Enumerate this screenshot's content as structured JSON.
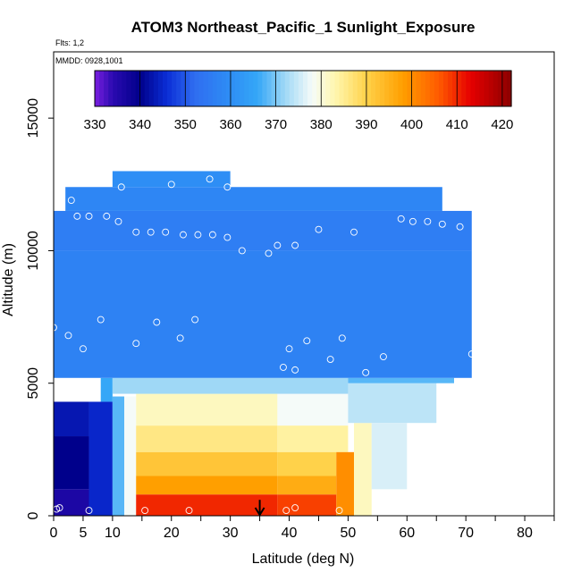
{
  "chart_data": {
    "type": "heatmap",
    "title": "ATOM3 Northeast_Pacific_1 Sunlight_Exposure",
    "flights_label": "Flts: 1,2",
    "mmdd_label": "MMDD: 0928,1001",
    "xlabel": "Latitude (deg N)",
    "ylabel": "Altitude (m)",
    "xlim": [
      0,
      85
    ],
    "ylim": [
      0,
      17500
    ],
    "x_ticks": [
      0,
      5,
      10,
      20,
      30,
      40,
      50,
      60,
      70,
      80
    ],
    "x_minor_ticks": [
      0,
      5,
      10,
      15,
      20,
      25,
      30,
      35,
      40,
      45,
      50,
      55,
      60,
      65,
      70,
      75,
      80,
      85
    ],
    "y_ticks": [
      0,
      5000,
      10000,
      15000
    ],
    "colorbar": {
      "min": 330,
      "max": 422,
      "ticks": [
        330,
        340,
        350,
        360,
        370,
        380,
        390,
        400,
        410,
        420
      ],
      "stops": [
        [
          330,
          "#7a1fe0"
        ],
        [
          334,
          "#2a0ab0"
        ],
        [
          340,
          "#00008b"
        ],
        [
          346,
          "#0b2ed6"
        ],
        [
          352,
          "#2f6df0"
        ],
        [
          360,
          "#2e8ef5"
        ],
        [
          366,
          "#35a7f7"
        ],
        [
          372,
          "#9fd8f6"
        ],
        [
          378,
          "#f5fbf9"
        ],
        [
          383,
          "#fff7b0"
        ],
        [
          390,
          "#ffd24a"
        ],
        [
          398,
          "#ff9f00"
        ],
        [
          406,
          "#ff5a00"
        ],
        [
          413,
          "#e60000"
        ],
        [
          422,
          "#8b0000"
        ]
      ]
    },
    "blocks": [
      {
        "x": [
          0,
          8
        ],
        "y": [
          0,
          1000
        ],
        "v": 336
      },
      {
        "x": [
          0,
          6
        ],
        "y": [
          1000,
          3000
        ],
        "v": 340
      },
      {
        "x": [
          0,
          6
        ],
        "y": [
          3000,
          4300
        ],
        "v": 343
      },
      {
        "x": [
          6,
          10
        ],
        "y": [
          0,
          4300
        ],
        "v": 345
      },
      {
        "x": [
          10,
          12
        ],
        "y": [
          0,
          4500
        ],
        "v": 368
      },
      {
        "x": [
          12,
          14
        ],
        "y": [
          0,
          4500
        ],
        "v": 378
      },
      {
        "x": [
          14,
          38
        ],
        "y": [
          3400,
          4600
        ],
        "v": 382
      },
      {
        "x": [
          14,
          38
        ],
        "y": [
          2400,
          3400
        ],
        "v": 386
      },
      {
        "x": [
          14,
          38
        ],
        "y": [
          1500,
          2400
        ],
        "v": 392
      },
      {
        "x": [
          14,
          38
        ],
        "y": [
          800,
          1500
        ],
        "v": 398
      },
      {
        "x": [
          14,
          38
        ],
        "y": [
          0,
          800
        ],
        "v": 410
      },
      {
        "x": [
          38,
          50
        ],
        "y": [
          3400,
          4600
        ],
        "v": 378
      },
      {
        "x": [
          38,
          50
        ],
        "y": [
          2400,
          3400
        ],
        "v": 384
      },
      {
        "x": [
          38,
          48
        ],
        "y": [
          1500,
          2400
        ],
        "v": 390
      },
      {
        "x": [
          38,
          48
        ],
        "y": [
          800,
          1500
        ],
        "v": 396
      },
      {
        "x": [
          38,
          48
        ],
        "y": [
          0,
          800
        ],
        "v": 408
      },
      {
        "x": [
          48,
          51
        ],
        "y": [
          0,
          2400
        ],
        "v": 400
      },
      {
        "x": [
          51,
          54
        ],
        "y": [
          0,
          3500
        ],
        "v": 382
      },
      {
        "x": [
          50,
          65
        ],
        "y": [
          3500,
          5000
        ],
        "v": 374
      },
      {
        "x": [
          54,
          60
        ],
        "y": [
          1000,
          3500
        ],
        "v": 376
      },
      {
        "x": [
          8,
          10
        ],
        "y": [
          4300,
          5200
        ],
        "v": 366
      },
      {
        "x": [
          10,
          50
        ],
        "y": [
          4600,
          5200
        ],
        "v": 372
      },
      {
        "x": [
          50,
          68
        ],
        "y": [
          5000,
          5200
        ],
        "v": 368
      },
      {
        "x": [
          0,
          71
        ],
        "y": [
          5200,
          10000
        ],
        "v": 357
      },
      {
        "x": [
          0,
          71
        ],
        "y": [
          10000,
          11500
        ],
        "v": 356
      },
      {
        "x": [
          2,
          66
        ],
        "y": [
          11500,
          12400
        ],
        "v": 358
      },
      {
        "x": [
          10,
          30
        ],
        "y": [
          12400,
          13000
        ],
        "v": 360
      }
    ],
    "points": [
      {
        "x": 0,
        "y": 7100
      },
      {
        "x": 2.5,
        "y": 6800
      },
      {
        "x": 5,
        "y": 6300
      },
      {
        "x": 8,
        "y": 7400
      },
      {
        "x": 14,
        "y": 6500
      },
      {
        "x": 17.5,
        "y": 7300
      },
      {
        "x": 21.5,
        "y": 6700
      },
      {
        "x": 24,
        "y": 7400
      },
      {
        "x": 39,
        "y": 5600
      },
      {
        "x": 40,
        "y": 6300
      },
      {
        "x": 41,
        "y": 5500
      },
      {
        "x": 43,
        "y": 6600
      },
      {
        "x": 47,
        "y": 5900
      },
      {
        "x": 49,
        "y": 6700
      },
      {
        "x": 53,
        "y": 5400
      },
      {
        "x": 56,
        "y": 6000
      },
      {
        "x": 71,
        "y": 6100
      },
      {
        "x": 3,
        "y": 11900
      },
      {
        "x": 4,
        "y": 11300
      },
      {
        "x": 6,
        "y": 11300
      },
      {
        "x": 9,
        "y": 11300
      },
      {
        "x": 11,
        "y": 11100
      },
      {
        "x": 11.5,
        "y": 12400
      },
      {
        "x": 14,
        "y": 10700
      },
      {
        "x": 16.5,
        "y": 10700
      },
      {
        "x": 19,
        "y": 10700
      },
      {
        "x": 20,
        "y": 12500
      },
      {
        "x": 22,
        "y": 10600
      },
      {
        "x": 24.5,
        "y": 10600
      },
      {
        "x": 27,
        "y": 10600
      },
      {
        "x": 26.5,
        "y": 12700
      },
      {
        "x": 29.5,
        "y": 10500
      },
      {
        "x": 29.5,
        "y": 12400
      },
      {
        "x": 32,
        "y": 10000
      },
      {
        "x": 36.5,
        "y": 9900
      },
      {
        "x": 38,
        "y": 10200
      },
      {
        "x": 41,
        "y": 10200
      },
      {
        "x": 45,
        "y": 10800
      },
      {
        "x": 51,
        "y": 10700
      },
      {
        "x": 59,
        "y": 11200
      },
      {
        "x": 61,
        "y": 11100
      },
      {
        "x": 63.5,
        "y": 11100
      },
      {
        "x": 66,
        "y": 11000
      },
      {
        "x": 69,
        "y": 10900
      },
      {
        "x": 0.5,
        "y": 250
      },
      {
        "x": 1,
        "y": 300
      },
      {
        "x": 6,
        "y": 200
      },
      {
        "x": 15.5,
        "y": 200
      },
      {
        "x": 23,
        "y": 200
      },
      {
        "x": 39.5,
        "y": 200
      },
      {
        "x": 41,
        "y": 300
      },
      {
        "x": 48.5,
        "y": 200
      }
    ],
    "arrow": {
      "x": 35,
      "y_from": 600,
      "y_to": 0
    }
  }
}
